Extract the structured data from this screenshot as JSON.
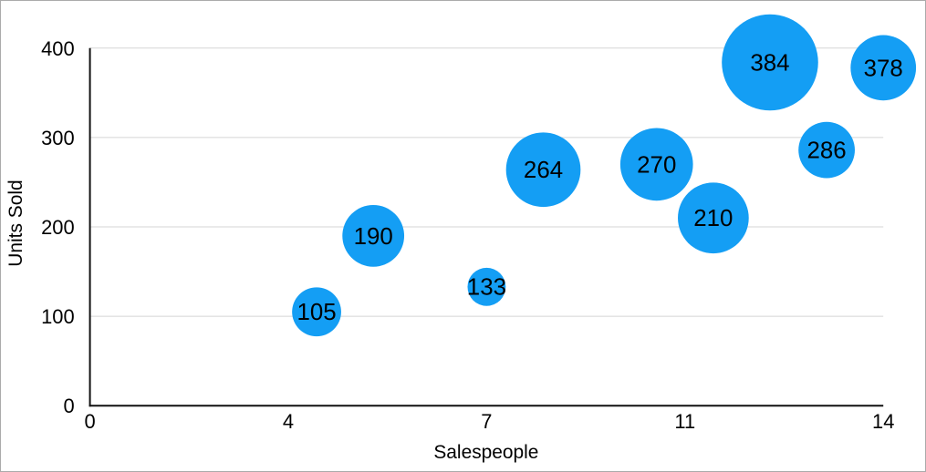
{
  "figure": {
    "background": "#FFFFFF",
    "border_color": "#ABABAB"
  },
  "chart_data": {
    "type": "bubble",
    "title": "",
    "xlabel": "Salespeople",
    "ylabel": "Units Sold",
    "xlim": [
      0,
      14
    ],
    "ylim": [
      0,
      400
    ],
    "grid": "horizontal",
    "legend": "none",
    "axis_color": "#111111",
    "gridline_color": "#D5D5D5",
    "tick_label_color": "#000000",
    "x_ticks": [
      {
        "label": "0",
        "value": 0
      },
      {
        "label": "4",
        "value": 3.5
      },
      {
        "label": "7",
        "value": 7
      },
      {
        "label": "11",
        "value": 10.5
      },
      {
        "label": "14",
        "value": 14
      }
    ],
    "y_ticks": [
      {
        "label": "0",
        "value": 0
      },
      {
        "label": "100",
        "value": 100
      },
      {
        "label": "200",
        "value": 200
      },
      {
        "label": "300",
        "value": 300
      },
      {
        "label": "400",
        "value": 400
      }
    ],
    "series": [
      {
        "name": "units-sold-bubbles",
        "color": "#149EF4",
        "label_color": "#000000",
        "points": [
          {
            "x": 4,
            "y": 105,
            "label": "105",
            "radius_px": 27
          },
          {
            "x": 5,
            "y": 190,
            "label": "190",
            "radius_px": 34
          },
          {
            "x": 7,
            "y": 133,
            "label": "133",
            "radius_px": 21
          },
          {
            "x": 8,
            "y": 264,
            "label": "264",
            "radius_px": 41
          },
          {
            "x": 10,
            "y": 270,
            "label": "270",
            "radius_px": 40
          },
          {
            "x": 11,
            "y": 210,
            "label": "210",
            "radius_px": 39
          },
          {
            "x": 12,
            "y": 384,
            "label": "384",
            "radius_px": 53
          },
          {
            "x": 13,
            "y": 286,
            "label": "286",
            "radius_px": 31
          },
          {
            "x": 14,
            "y": 378,
            "label": "378",
            "radius_px": 36
          }
        ]
      }
    ]
  }
}
